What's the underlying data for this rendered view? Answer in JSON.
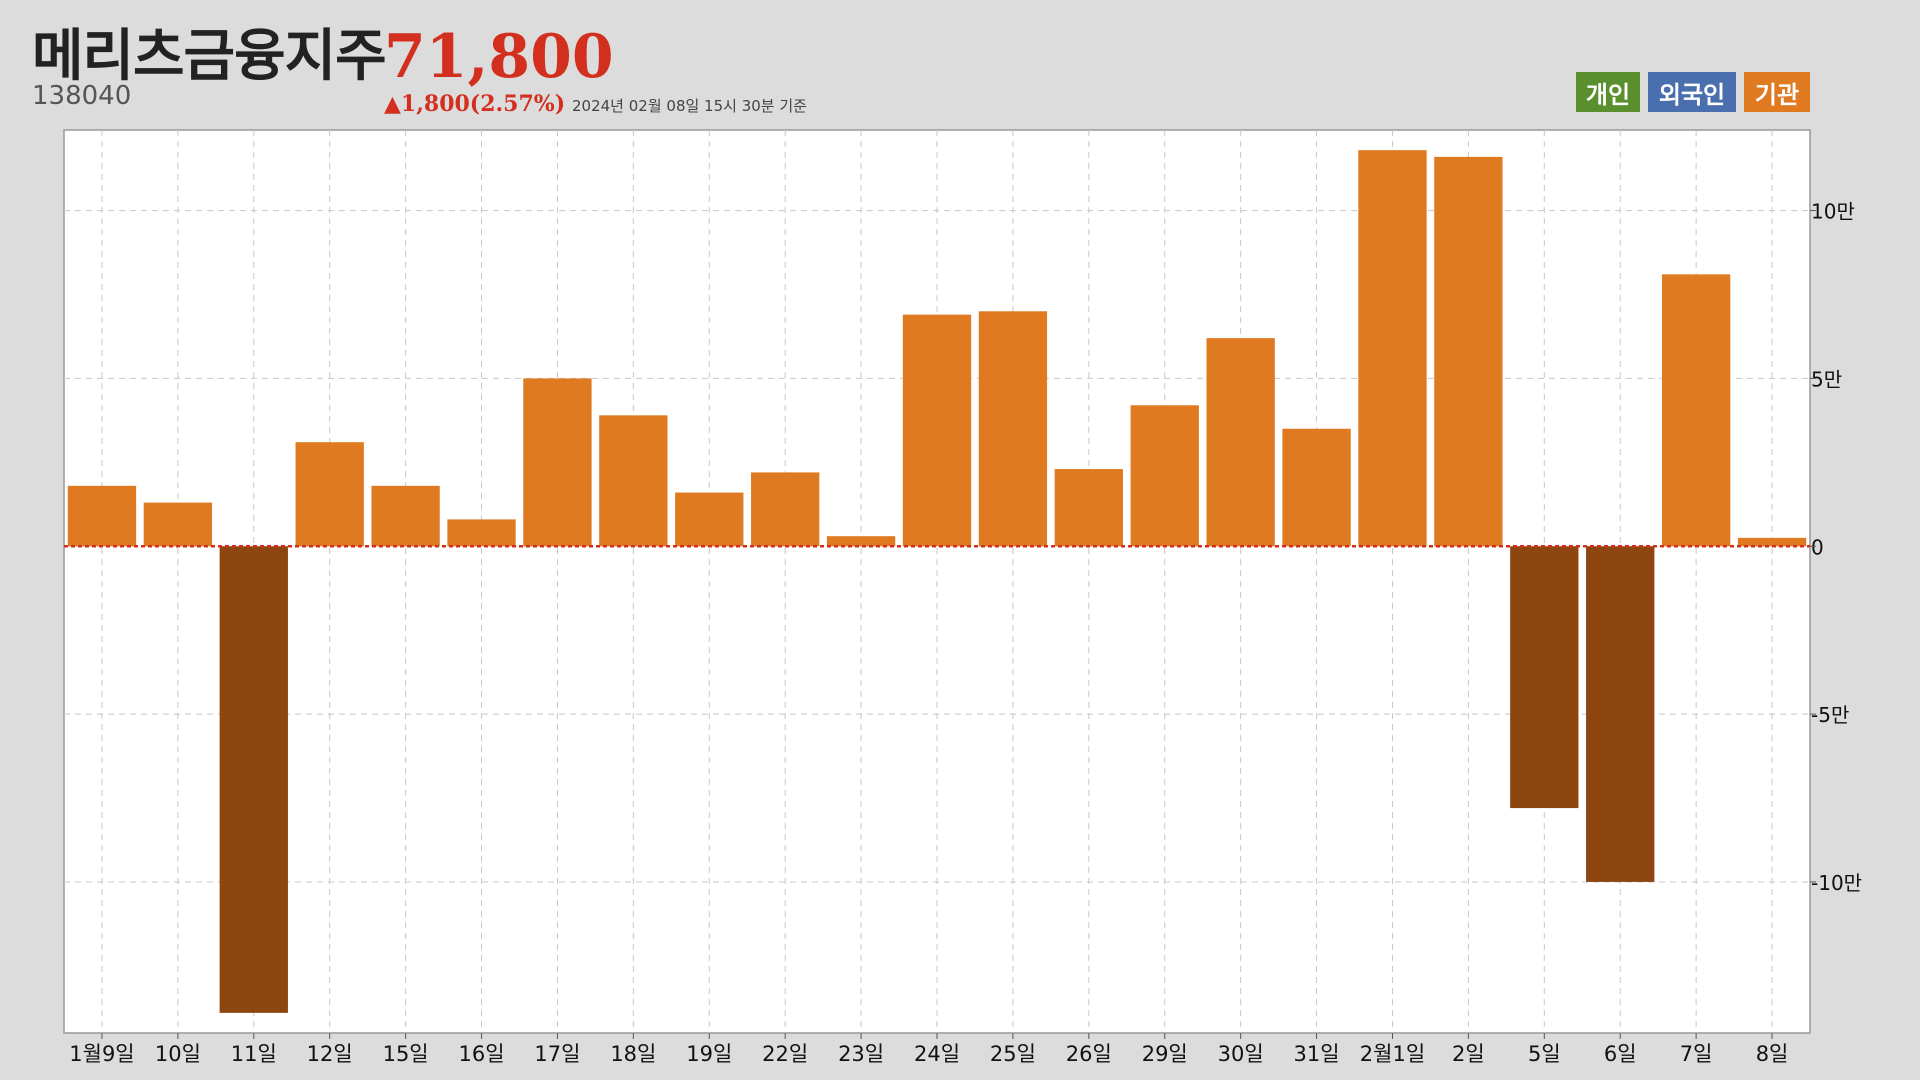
{
  "header": {
    "name": "메리츠금융지주",
    "price": "71,800",
    "code": "138040",
    "change": "▲1,800(2.57%)",
    "as_of": "2024년 02월 08일 15시 30분 기준"
  },
  "legend": {
    "individual": "개인",
    "foreign": "외국인",
    "institution": "기관"
  },
  "colors": {
    "positive": "#e07a21",
    "negative": "#8e4611",
    "individual": "#5a8f2e",
    "foreign": "#4a6fae",
    "institution": "#e07a21",
    "zero_line": "#d32f1f"
  },
  "chart_data": {
    "type": "bar",
    "series_name": "기관",
    "categories": [
      "1월9일",
      "10일",
      "11일",
      "12일",
      "15일",
      "16일",
      "17일",
      "18일",
      "19일",
      "22일",
      "23일",
      "24일",
      "25일",
      "26일",
      "29일",
      "30일",
      "31일",
      "2월1일",
      "2일",
      "5일",
      "6일",
      "7일",
      "8일"
    ],
    "values": [
      18000,
      13000,
      -139000,
      31000,
      18000,
      8000,
      50000,
      39000,
      16000,
      22000,
      3000,
      69000,
      70000,
      23000,
      42000,
      62000,
      35000,
      118000,
      116000,
      -78000,
      -100000,
      81000,
      2500
    ],
    "ylim": [
      -145000,
      124000
    ],
    "yticks": [
      100000,
      50000,
      0,
      -50000,
      -100000
    ],
    "ytick_labels": [
      "10만",
      "5만",
      "0",
      "-5만",
      "-10만"
    ],
    "grid": true
  }
}
